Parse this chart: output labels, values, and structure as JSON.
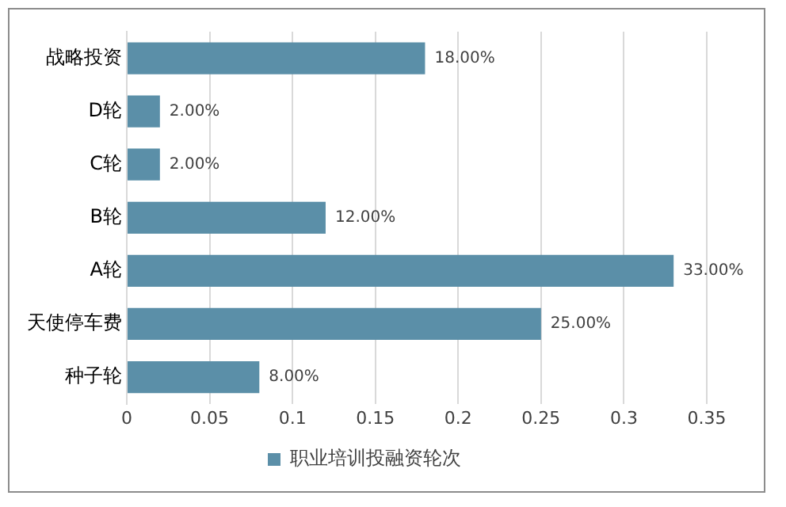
{
  "chart_data": {
    "type": "bar",
    "orientation": "horizontal",
    "categories": [
      "战略投资",
      "D轮",
      "C轮",
      "B轮",
      "A轮",
      "天使停车费",
      "种子轮"
    ],
    "series": [
      {
        "name": "职业培训投融资轮次",
        "color": "#5b8fa8",
        "values": [
          0.18,
          0.02,
          0.02,
          0.12,
          0.33,
          0.25,
          0.08
        ],
        "value_labels": [
          "18.00%",
          "2.00%",
          "2.00%",
          "12.00%",
          "33.00%",
          "25.00%",
          "8.00%"
        ]
      }
    ],
    "xlim": [
      0,
      0.35
    ],
    "xticks": [
      0,
      0.05,
      0.1,
      0.15,
      0.2,
      0.25,
      0.3,
      0.35
    ],
    "grid": "x",
    "legend": "bottom"
  }
}
